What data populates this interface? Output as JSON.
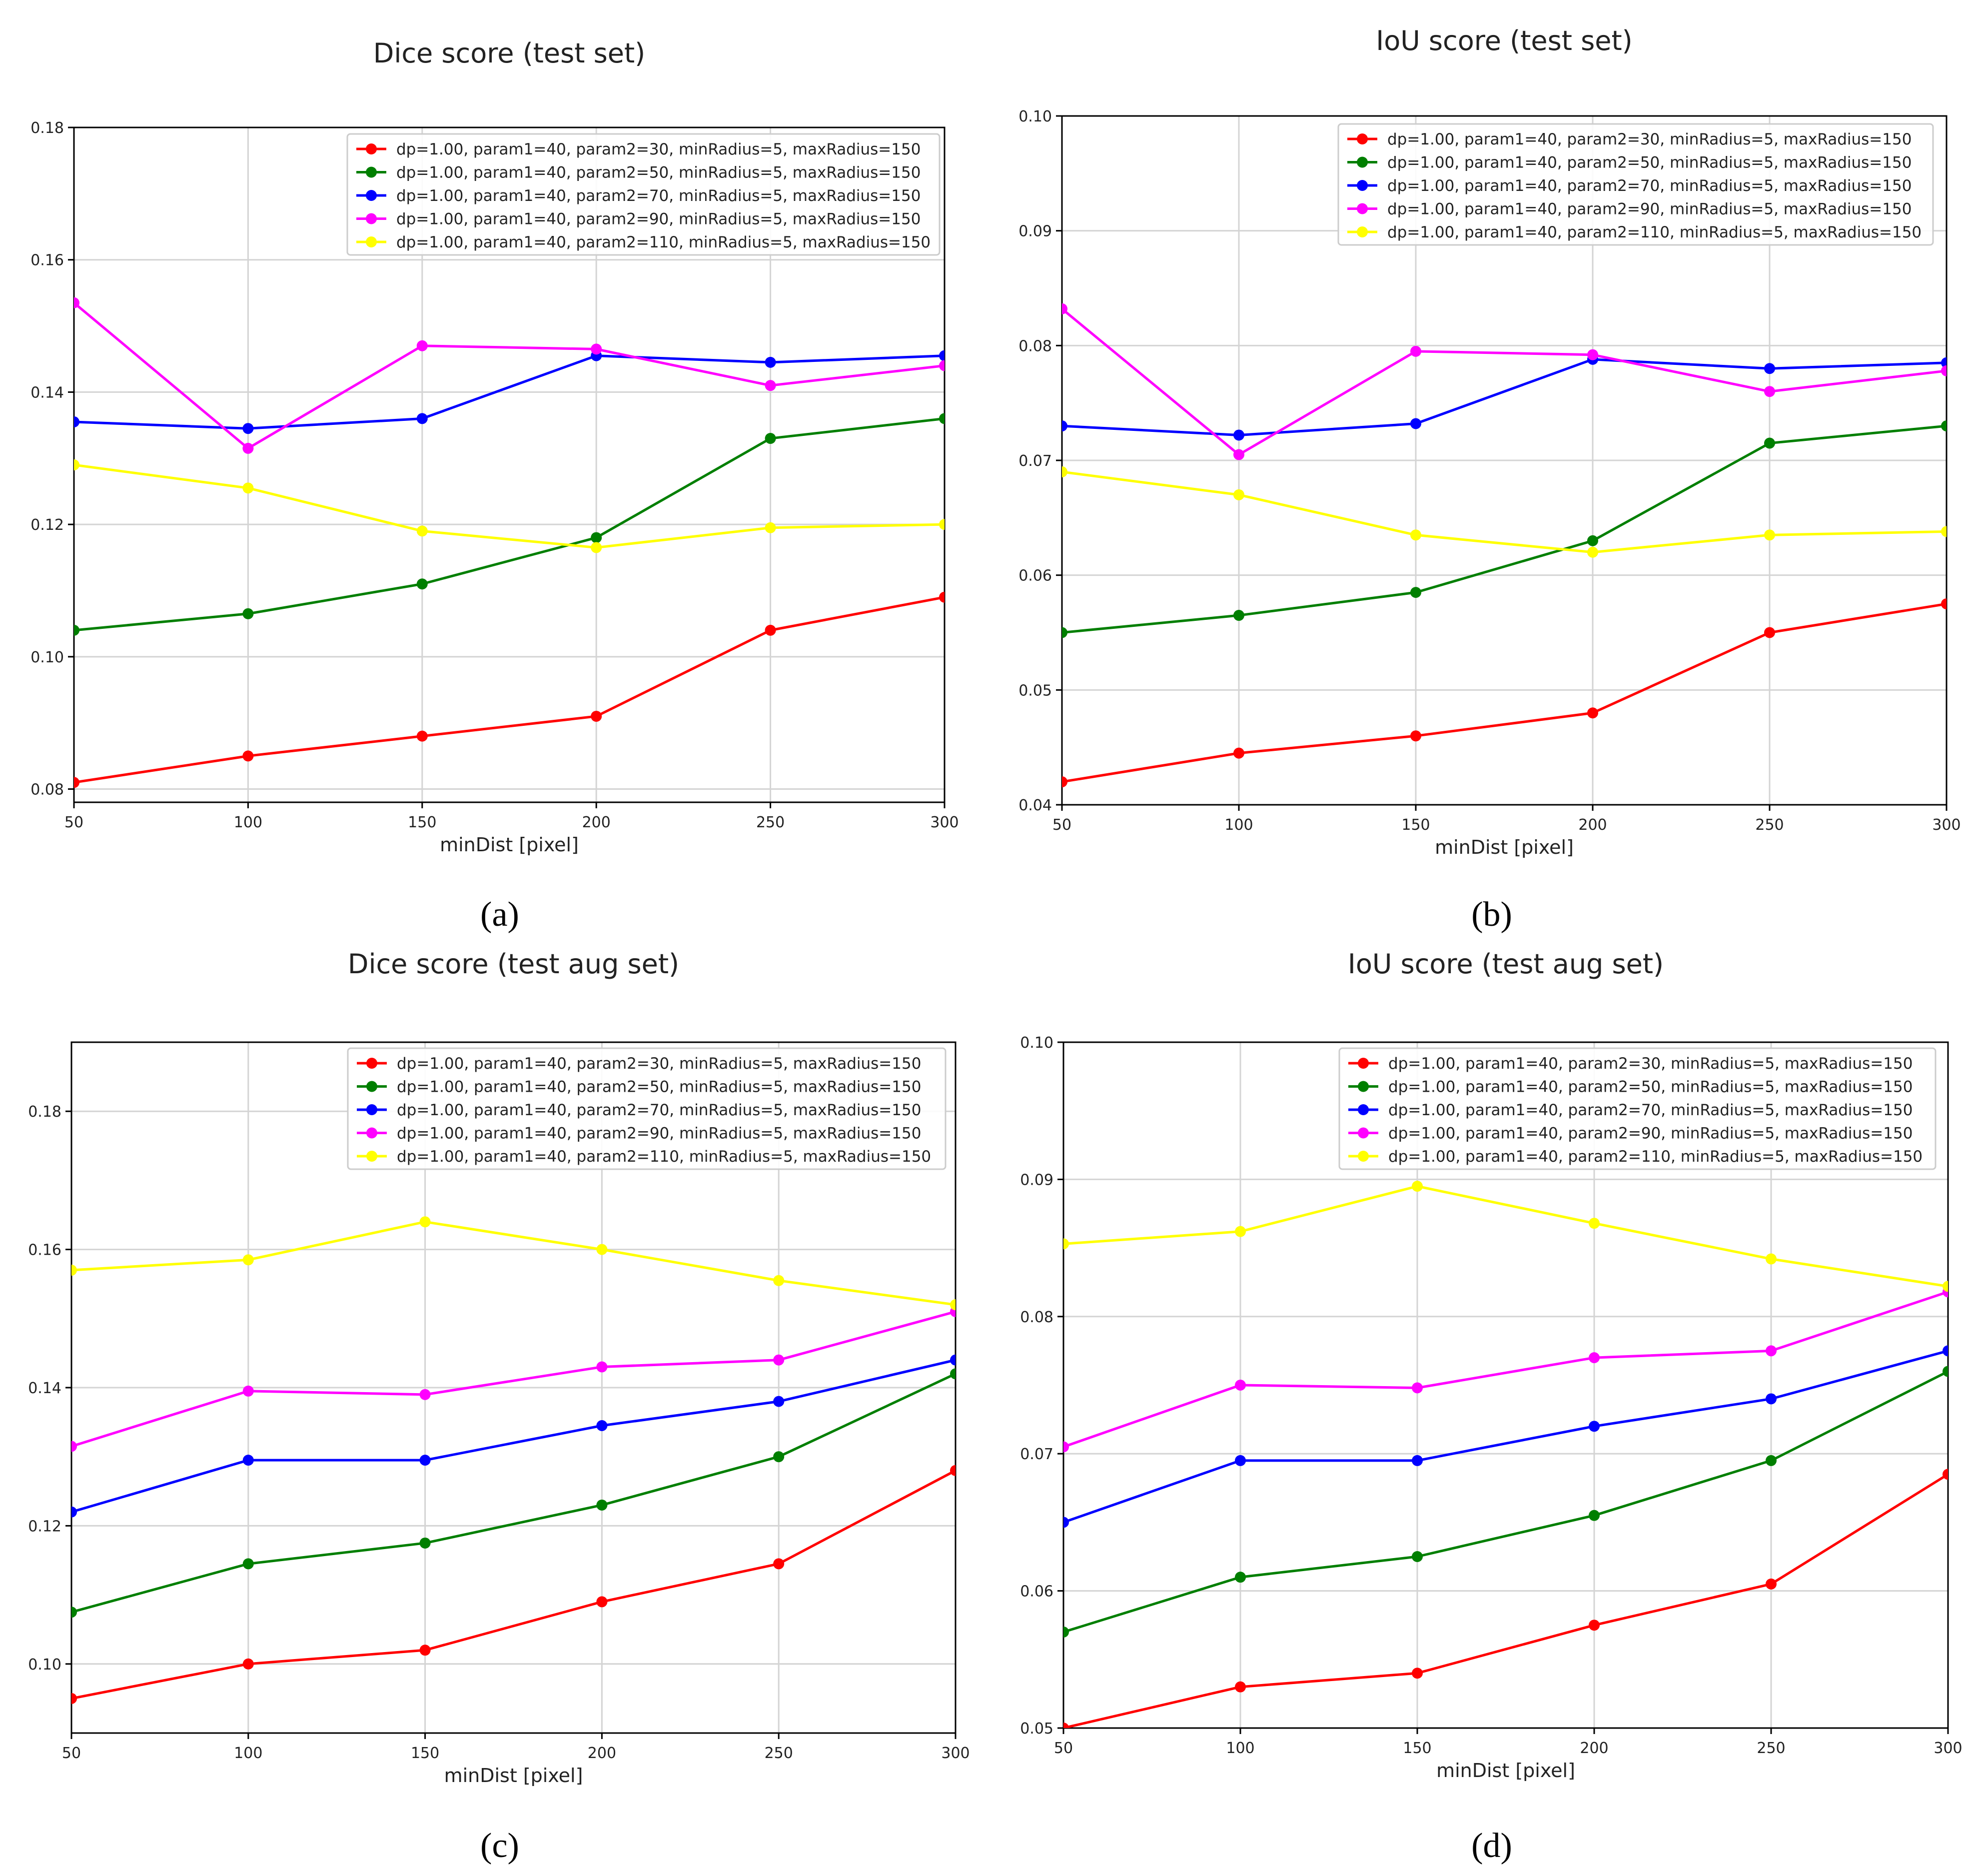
{
  "series_meta": [
    {
      "name": "dp=1.00, param1=40, param2=30, minRadius=5, maxRadius=150",
      "color": "#ff0000"
    },
    {
      "name": "dp=1.00, param1=40, param2=50, minRadius=5, maxRadius=150",
      "color": "#007f00"
    },
    {
      "name": "dp=1.00, param1=40, param2=70, minRadius=5, maxRadius=150",
      "color": "#0000ff"
    },
    {
      "name": "dp=1.00, param1=40, param2=90, minRadius=5, maxRadius=150",
      "color": "#ff00ff"
    },
    {
      "name": "dp=1.00, param1=40, param2=110, minRadius=5, maxRadius=150",
      "color": "#ffff00"
    }
  ],
  "chart_data": [
    {
      "type": "line",
      "panel_label": "(a)",
      "title": "Dice score (test set)",
      "xlabel": "minDist [pixel]",
      "ylabel": "",
      "x": [
        50,
        100,
        150,
        200,
        250,
        300
      ],
      "xlim": [
        50,
        300
      ],
      "ylim": [
        0.078,
        0.18
      ],
      "xticks": [
        "50",
        "100",
        "150",
        "200",
        "250",
        "300"
      ],
      "yticks": [
        "0.08",
        "0.10",
        "0.12",
        "0.14",
        "0.16",
        "0.18"
      ],
      "ytick_values": [
        0.08,
        0.1,
        0.12,
        0.14,
        0.16,
        0.18
      ],
      "legend": "top-right",
      "grid": true,
      "series": [
        {
          "name": "dp=1.00, param1=40, param2=30, minRadius=5, maxRadius=150",
          "values": [
            0.081,
            0.085,
            0.088,
            0.091,
            0.104,
            0.109
          ]
        },
        {
          "name": "dp=1.00, param1=40, param2=50, minRadius=5, maxRadius=150",
          "values": [
            0.104,
            0.1065,
            0.111,
            0.118,
            0.133,
            0.136
          ]
        },
        {
          "name": "dp=1.00, param1=40, param2=70, minRadius=5, maxRadius=150",
          "values": [
            0.1355,
            0.1345,
            0.136,
            0.1455,
            0.1445,
            0.1455
          ]
        },
        {
          "name": "dp=1.00, param1=40, param2=90, minRadius=5, maxRadius=150",
          "values": [
            0.1535,
            0.1315,
            0.147,
            0.1465,
            0.141,
            0.144
          ]
        },
        {
          "name": "dp=1.00, param1=40, param2=110, minRadius=5, maxRadius=150",
          "values": [
            0.129,
            0.1255,
            0.119,
            0.1165,
            0.1195,
            0.12
          ]
        }
      ]
    },
    {
      "type": "line",
      "panel_label": "(b)",
      "title": "IoU score (test set)",
      "xlabel": "minDist [pixel]",
      "ylabel": "",
      "x": [
        50,
        100,
        150,
        200,
        250,
        300
      ],
      "xlim": [
        50,
        300
      ],
      "ylim": [
        0.04,
        0.1
      ],
      "xticks": [
        "50",
        "100",
        "150",
        "200",
        "250",
        "300"
      ],
      "yticks": [
        "0.04",
        "0.05",
        "0.06",
        "0.07",
        "0.08",
        "0.09",
        "0.10"
      ],
      "ytick_values": [
        0.04,
        0.05,
        0.06,
        0.07,
        0.08,
        0.09,
        0.1
      ],
      "legend": "top-right",
      "grid": true,
      "series": [
        {
          "name": "dp=1.00, param1=40, param2=30, minRadius=5, maxRadius=150",
          "values": [
            0.042,
            0.0445,
            0.046,
            0.048,
            0.055,
            0.0575
          ]
        },
        {
          "name": "dp=1.00, param1=40, param2=50, minRadius=5, maxRadius=150",
          "values": [
            0.055,
            0.0565,
            0.0585,
            0.063,
            0.0715,
            0.073
          ]
        },
        {
          "name": "dp=1.00, param1=40, param2=70, minRadius=5, maxRadius=150",
          "values": [
            0.073,
            0.0722,
            0.0732,
            0.0788,
            0.078,
            0.0785
          ]
        },
        {
          "name": "dp=1.00, param1=40, param2=90, minRadius=5, maxRadius=150",
          "values": [
            0.0832,
            0.0705,
            0.0795,
            0.0792,
            0.076,
            0.0778
          ]
        },
        {
          "name": "dp=1.00, param1=40, param2=110, minRadius=5, maxRadius=150",
          "values": [
            0.069,
            0.067,
            0.0635,
            0.062,
            0.0635,
            0.0638
          ]
        }
      ]
    },
    {
      "type": "line",
      "panel_label": "(c)",
      "title": "Dice score (test aug set)",
      "xlabel": "minDist [pixel]",
      "ylabel": "",
      "x": [
        50,
        100,
        150,
        200,
        250,
        300
      ],
      "xlim": [
        50,
        300
      ],
      "ylim": [
        0.09,
        0.19
      ],
      "xticks": [
        "50",
        "100",
        "150",
        "200",
        "250",
        "300"
      ],
      "yticks": [
        "0.10",
        "0.12",
        "0.14",
        "0.16",
        "0.18"
      ],
      "ytick_values": [
        0.1,
        0.12,
        0.14,
        0.16,
        0.18
      ],
      "legend": "top-right",
      "grid": true,
      "series": [
        {
          "name": "dp=1.00, param1=40, param2=30, minRadius=5, maxRadius=150",
          "values": [
            0.095,
            0.1,
            0.102,
            0.109,
            0.1145,
            0.128
          ]
        },
        {
          "name": "dp=1.00, param1=40, param2=50, minRadius=5, maxRadius=150",
          "values": [
            0.1075,
            0.1145,
            0.1175,
            0.123,
            0.13,
            0.142
          ]
        },
        {
          "name": "dp=1.00, param1=40, param2=70, minRadius=5, maxRadius=150",
          "values": [
            0.122,
            0.1295,
            0.1295,
            0.1345,
            0.138,
            0.144
          ]
        },
        {
          "name": "dp=1.00, param1=40, param2=90, minRadius=5, maxRadius=150",
          "values": [
            0.1315,
            0.1395,
            0.139,
            0.143,
            0.144,
            0.151
          ]
        },
        {
          "name": "dp=1.00, param1=40, param2=110, minRadius=5, maxRadius=150",
          "values": [
            0.157,
            0.1585,
            0.164,
            0.16,
            0.1555,
            0.152
          ]
        }
      ]
    },
    {
      "type": "line",
      "panel_label": "(d)",
      "title": "IoU score (test aug set)",
      "xlabel": "minDist [pixel]",
      "ylabel": "",
      "x": [
        50,
        100,
        150,
        200,
        250,
        300
      ],
      "xlim": [
        50,
        300
      ],
      "ylim": [
        0.05,
        0.1
      ],
      "xticks": [
        "50",
        "100",
        "150",
        "200",
        "250",
        "300"
      ],
      "yticks": [
        "0.05",
        "0.06",
        "0.07",
        "0.08",
        "0.09",
        "0.10"
      ],
      "ytick_values": [
        0.05,
        0.06,
        0.07,
        0.08,
        0.09,
        0.1
      ],
      "legend": "top-right",
      "grid": true,
      "series": [
        {
          "name": "dp=1.00, param1=40, param2=30, minRadius=5, maxRadius=150",
          "values": [
            0.05,
            0.053,
            0.054,
            0.0575,
            0.0605,
            0.0685
          ]
        },
        {
          "name": "dp=1.00, param1=40, param2=50, minRadius=5, maxRadius=150",
          "values": [
            0.057,
            0.061,
            0.0625,
            0.0655,
            0.0695,
            0.076
          ]
        },
        {
          "name": "dp=1.00, param1=40, param2=70, minRadius=5, maxRadius=150",
          "values": [
            0.065,
            0.0695,
            0.0695,
            0.072,
            0.074,
            0.0775
          ]
        },
        {
          "name": "dp=1.00, param1=40, param2=90, minRadius=5, maxRadius=150",
          "values": [
            0.0705,
            0.075,
            0.0748,
            0.077,
            0.0775,
            0.0818
          ]
        },
        {
          "name": "dp=1.00, param1=40, param2=110, minRadius=5, maxRadius=150",
          "values": [
            0.0853,
            0.0862,
            0.0895,
            0.0868,
            0.0842,
            0.0822
          ]
        }
      ]
    }
  ]
}
